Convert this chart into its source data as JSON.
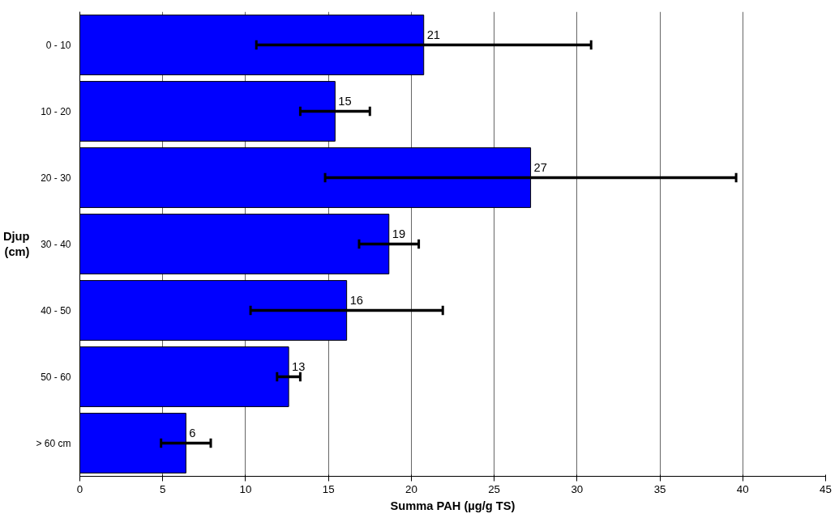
{
  "chart_data": {
    "type": "bar",
    "orientation": "horizontal",
    "xlabel": "Summa PAH (µg/g TS)",
    "ylabel": "Djup\n(cm)",
    "categories": [
      "0 - 10",
      "10 - 20",
      "20 - 30",
      "30 - 40",
      "40 - 50",
      "50 - 60",
      "> 60 cm"
    ],
    "values": [
      20.75,
      15.4,
      27.2,
      18.65,
      16.1,
      12.6,
      6.4
    ],
    "errors": [
      10.1,
      2.1,
      12.4,
      1.8,
      5.8,
      0.7,
      1.5
    ],
    "value_labels": [
      "21",
      "15",
      "27",
      "19",
      "16",
      "13",
      "6"
    ],
    "color": "#0000ff",
    "xlim": [
      0,
      45
    ],
    "xticks": [
      0,
      5,
      10,
      15,
      20,
      25,
      30,
      35,
      40,
      45
    ],
    "grid": "x"
  }
}
